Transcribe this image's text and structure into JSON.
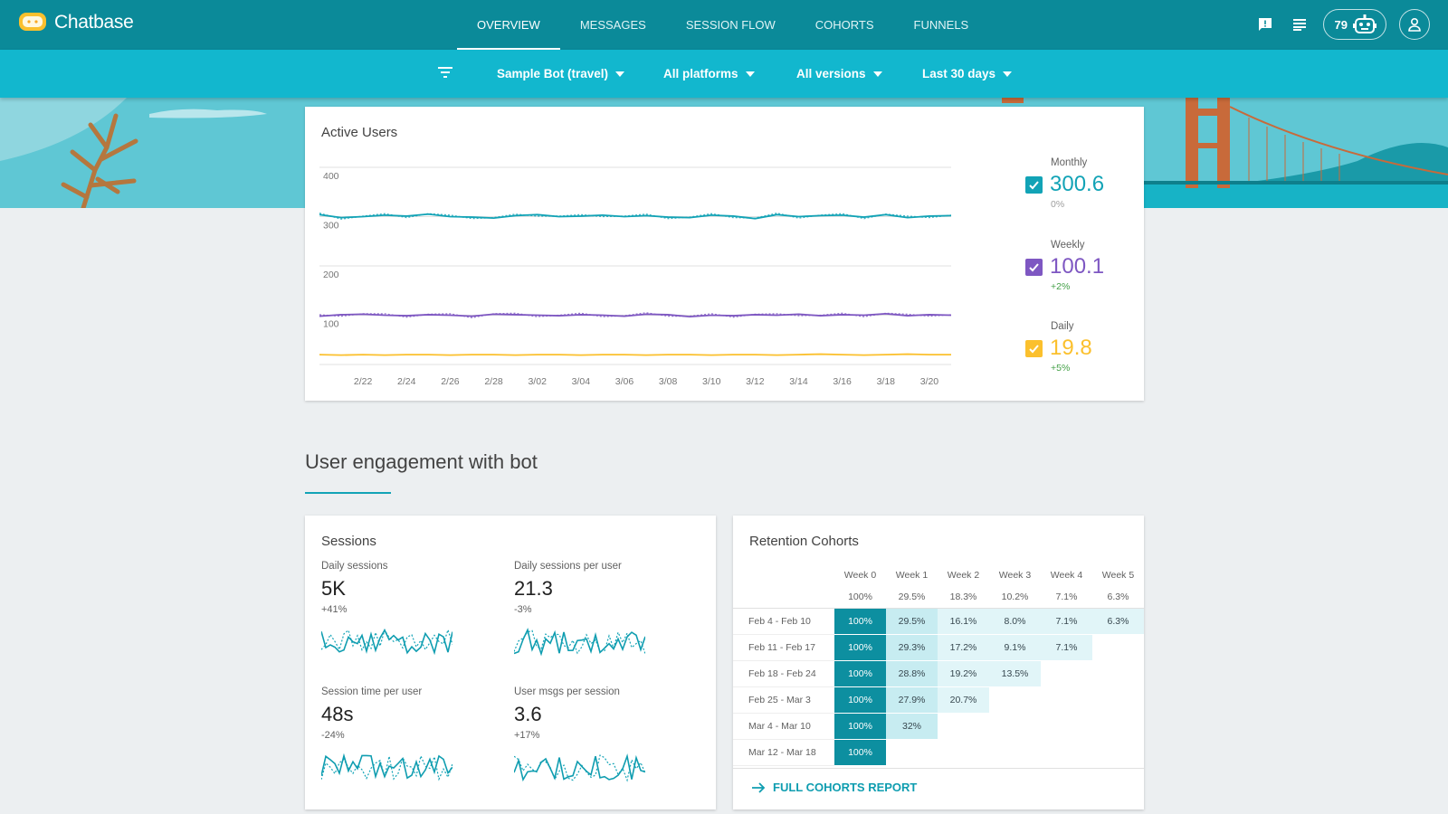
{
  "app": {
    "name": "Chatbase"
  },
  "nav": {
    "tabs": [
      {
        "label": "OVERVIEW",
        "active": true
      },
      {
        "label": "MESSAGES"
      },
      {
        "label": "SESSION FLOW"
      },
      {
        "label": "COHORTS"
      },
      {
        "label": "FUNNELS"
      }
    ]
  },
  "top_icons": {
    "bot_count": "79"
  },
  "filters": {
    "bot": "Sample Bot (travel)",
    "platform": "All platforms",
    "version": "All versions",
    "range": "Last 30 days"
  },
  "active_users": {
    "title": "Active Users",
    "yticks": [
      "400",
      "300",
      "200",
      "100"
    ],
    "xticks": [
      "2/22",
      "2/24",
      "2/26",
      "2/28",
      "3/02",
      "3/04",
      "3/06",
      "3/08",
      "3/10",
      "3/12",
      "3/14",
      "3/16",
      "3/18",
      "3/20"
    ],
    "legend": [
      {
        "label": "Monthly",
        "value": "300.6",
        "delta": "0%",
        "color": "#12a3b6",
        "delta_color": "#9e9e9e"
      },
      {
        "label": "Weekly",
        "value": "100.1",
        "delta": "+2%",
        "color": "#7e57c2",
        "delta_color": "#43a047"
      },
      {
        "label": "Daily",
        "value": "19.8",
        "delta": "+5%",
        "color": "#fbc02d",
        "delta_color": "#43a047"
      }
    ]
  },
  "chart_data": {
    "type": "line",
    "title": "Active Users",
    "ylim": [
      0,
      400
    ],
    "x": [
      "2/20",
      "2/21",
      "2/22",
      "2/23",
      "2/24",
      "2/25",
      "2/26",
      "2/27",
      "2/28",
      "3/01",
      "3/02",
      "3/03",
      "3/04",
      "3/05",
      "3/06",
      "3/07",
      "3/08",
      "3/09",
      "3/10",
      "3/11",
      "3/12",
      "3/13",
      "3/14",
      "3/15",
      "3/16",
      "3/17",
      "3/18",
      "3/19",
      "3/20",
      "3/21"
    ],
    "series": [
      {
        "name": "Monthly",
        "values": [
          304,
          298,
          300,
          303,
          301,
          305,
          300,
          299,
          297,
          302,
          304,
          300,
          301,
          303,
          300,
          302,
          299,
          298,
          303,
          301,
          296,
          304,
          300,
          302,
          303,
          299,
          304,
          298,
          301,
          302
        ]
      },
      {
        "name": "Weekly",
        "values": [
          98,
          101,
          102,
          100,
          99,
          101,
          100,
          98,
          102,
          101,
          100,
          99,
          101,
          100,
          98,
          102,
          101,
          97,
          100,
          99,
          101,
          100,
          102,
          99,
          101,
          100,
          103,
          99,
          101,
          100
        ]
      },
      {
        "name": "Daily",
        "values": [
          20,
          19,
          20,
          19,
          20,
          20,
          19,
          20,
          20,
          19,
          20,
          20,
          19,
          20,
          20,
          19,
          20,
          20,
          19,
          20,
          20,
          19,
          20,
          21,
          20,
          19,
          20,
          21,
          20,
          20
        ]
      }
    ]
  },
  "engagement": {
    "title": "User engagement with bot"
  },
  "sessions": {
    "title": "Sessions",
    "metrics": [
      {
        "label": "Daily sessions",
        "value": "5K",
        "delta": "+41%"
      },
      {
        "label": "Daily sessions per user",
        "value": "21.3",
        "delta": "-3%"
      },
      {
        "label": "Session time per user",
        "value": "48s",
        "delta": "-24%"
      },
      {
        "label": "User msgs per session",
        "value": "3.6",
        "delta": "+17%"
      }
    ]
  },
  "retention": {
    "title": "Retention Cohorts",
    "weeks": [
      "Week 0",
      "Week 1",
      "Week 2",
      "Week 3",
      "Week 4",
      "Week 5"
    ],
    "averages": [
      "100%",
      "29.5%",
      "18.3%",
      "10.2%",
      "7.1%",
      "6.3%"
    ],
    "rows": [
      {
        "label": "Feb 4 - Feb 10",
        "cells": [
          "100%",
          "29.5%",
          "16.1%",
          "8.0%",
          "7.1%",
          "6.3%"
        ]
      },
      {
        "label": "Feb 11 - Feb 17",
        "cells": [
          "100%",
          "29.3%",
          "17.2%",
          "9.1%",
          "7.1%"
        ]
      },
      {
        "label": "Feb 18 - Feb 24",
        "cells": [
          "100%",
          "28.8%",
          "19.2%",
          "13.5%"
        ]
      },
      {
        "label": "Feb 25 - Mar 3",
        "cells": [
          "100%",
          "27.9%",
          "20.7%"
        ]
      },
      {
        "label": "Mar 4 - Mar 10",
        "cells": [
          "100%",
          "32%"
        ]
      },
      {
        "label": "Mar 12 - Mar 18",
        "cells": [
          "100%"
        ]
      }
    ],
    "footer_link": "FULL COHORTS REPORT"
  }
}
